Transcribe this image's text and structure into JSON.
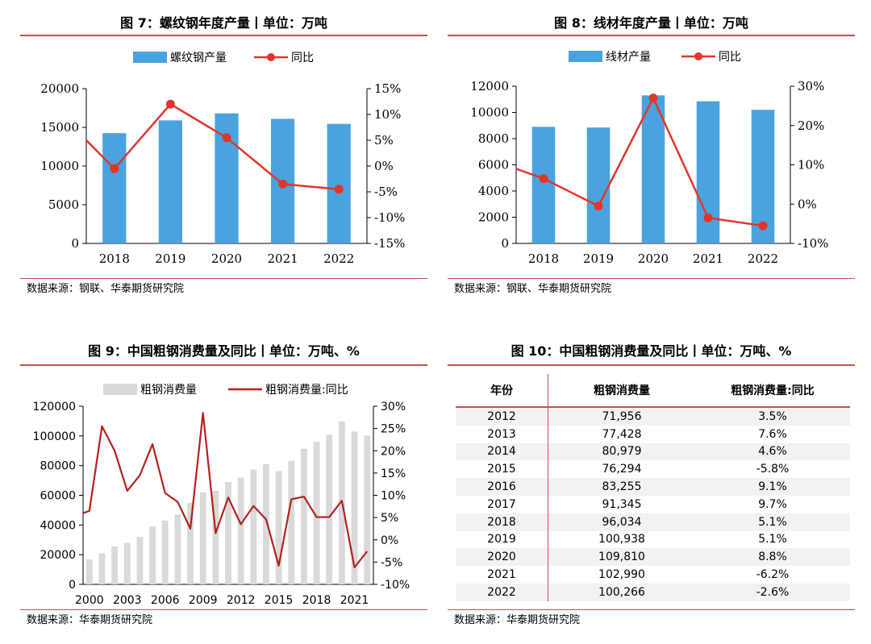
{
  "colors": {
    "bar_blue": "#4aa3df",
    "line_red": "#e2352a",
    "bar_grey": "#d9d9d9",
    "line_darkred": "#b52020",
    "rule_red": "#c0504d"
  },
  "fig7": {
    "title": "图 7：螺纹钢年度产量丨单位：万吨",
    "source": "数据来源：钢联、华泰期货研究院",
    "chart_data": {
      "type": "bar",
      "categories": [
        "2018",
        "2019",
        "2020",
        "2021",
        "2022"
      ],
      "series": [
        {
          "name": "螺纹钢产量",
          "type": "bar",
          "axis": "left",
          "values": [
            14250,
            15900,
            16800,
            16100,
            15450
          ]
        },
        {
          "name": "同比",
          "type": "line",
          "axis": "right",
          "values": [
            -0.5,
            12.0,
            5.5,
            -3.5,
            -4.5
          ],
          "line_start": 5.0
        }
      ],
      "ylim_left": [
        0,
        20000
      ],
      "yticks_left": [
        "20000",
        "15000",
        "10000",
        "5000",
        "0"
      ],
      "ylim_right": [
        -15,
        15
      ],
      "yticks_right": [
        "15%",
        "10%",
        "5%",
        "0%",
        "-5%",
        "-10%",
        "-15%"
      ],
      "legend": "top"
    }
  },
  "fig8": {
    "title": "图 8：线材年度产量丨单位：万吨",
    "source": "数据来源：钢联、华泰期货研究院",
    "chart_data": {
      "type": "bar",
      "categories": [
        "2018",
        "2019",
        "2020",
        "2021",
        "2022"
      ],
      "series": [
        {
          "name": "线材产量",
          "type": "bar",
          "axis": "left",
          "values": [
            8900,
            8850,
            11300,
            10850,
            10200
          ]
        },
        {
          "name": "同比",
          "type": "line",
          "axis": "right",
          "values": [
            6.5,
            -0.5,
            27.0,
            -3.5,
            -5.5
          ],
          "line_start": 9.0
        }
      ],
      "ylim_left": [
        0,
        12000
      ],
      "yticks_left": [
        "12000",
        "10000",
        "8000",
        "6000",
        "4000",
        "2000",
        "0"
      ],
      "ylim_right": [
        -10,
        30
      ],
      "yticks_right": [
        "30%",
        "20%",
        "10%",
        "0%",
        "-10%"
      ],
      "legend": "top"
    }
  },
  "fig9": {
    "title": "图 9：中国粗钢消费量及同比丨单位：万吨、%",
    "source": "数据来源：华泰期货研究院",
    "chart_data": {
      "type": "bar",
      "x_labels": [
        "2000",
        "2003",
        "2006",
        "2009",
        "2012",
        "2015",
        "2018",
        "2021"
      ],
      "series": [
        {
          "name": "粗钢消费量",
          "type": "bar",
          "axis": "left",
          "values": [
            16800,
            21000,
            25500,
            28000,
            32000,
            39000,
            43000,
            47000,
            55000,
            62000,
            63000,
            69000,
            71956,
            77428,
            80979,
            76294,
            83255,
            91345,
            96034,
            100938,
            109810,
            102990,
            100266
          ]
        },
        {
          "name": "粗钢消费量:同比",
          "type": "line",
          "axis": "right",
          "values": [
            6.5,
            25.5,
            20.0,
            11.0,
            14.5,
            21.5,
            10.5,
            8.5,
            2.5,
            28.5,
            1.5,
            9.5,
            3.5,
            7.6,
            4.6,
            -5.8,
            9.1,
            9.7,
            5.1,
            5.1,
            8.8,
            -6.2,
            -2.6
          ],
          "line_start": 6.0
        }
      ],
      "ylim_left": [
        0,
        120000
      ],
      "yticks_left": [
        "120000",
        "100000",
        "80000",
        "60000",
        "40000",
        "20000",
        "0"
      ],
      "ylim_right": [
        -10,
        30
      ],
      "yticks_right": [
        "30%",
        "25%",
        "20%",
        "15%",
        "10%",
        "5%",
        "0%",
        "-5%",
        "-10%"
      ],
      "legend": "top"
    }
  },
  "fig10": {
    "title": "图 10：中国粗钢消费量及同比丨单位：万吨、%",
    "source": "数据来源：华泰期货研究院",
    "chart_data": {
      "type": "table",
      "columns": [
        "年份",
        "粗钢消费量",
        "粗钢消费量:同比"
      ],
      "rows": [
        [
          "2012",
          "71,956",
          "3.5%"
        ],
        [
          "2013",
          "77,428",
          "7.6%"
        ],
        [
          "2014",
          "80,979",
          "4.6%"
        ],
        [
          "2015",
          "76,294",
          "-5.8%"
        ],
        [
          "2016",
          "83,255",
          "9.1%"
        ],
        [
          "2017",
          "91,345",
          "9.7%"
        ],
        [
          "2018",
          "96,034",
          "5.1%"
        ],
        [
          "2019",
          "100,938",
          "5.1%"
        ],
        [
          "2020",
          "109,810",
          "8.8%"
        ],
        [
          "2021",
          "102,990",
          "-6.2%"
        ],
        [
          "2022",
          "100,266",
          "-2.6%"
        ]
      ]
    }
  }
}
